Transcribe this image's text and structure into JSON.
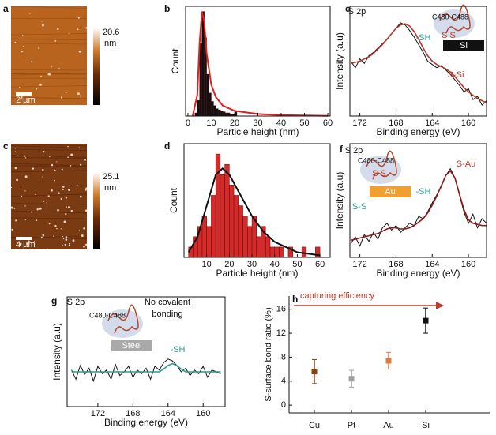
{
  "chart_data": [
    {
      "type": "image",
      "label": "a",
      "colorbar_max": "20.6",
      "colorbar_unit": "nm",
      "scale_label": "2 µm"
    },
    {
      "type": "histogram",
      "label": "b",
      "xlabel": "Particle height (nm)",
      "ylabel": "Count",
      "bins": [
        3,
        4,
        5,
        6,
        7,
        8,
        9,
        10,
        11,
        12,
        13,
        14,
        15,
        16,
        17,
        18,
        19,
        20,
        21
      ],
      "values": [
        3,
        15,
        70,
        100,
        75,
        40,
        22,
        14,
        10,
        7,
        6,
        5,
        4,
        3,
        3,
        2,
        2,
        4
      ],
      "color": "#111111",
      "fit": {
        "x": [
          2,
          4,
          5,
          6,
          7,
          8,
          10,
          12,
          15,
          20,
          30,
          40,
          50,
          60
        ],
        "values": [
          0,
          20,
          70,
          100,
          90,
          60,
          30,
          18,
          10,
          5,
          2,
          1,
          0.5,
          0.2
        ],
        "color": "#e02020"
      },
      "xlim": [
        -1,
        61
      ],
      "xticks": [
        0,
        10,
        20,
        30,
        40,
        50,
        60
      ],
      "ylim": [
        0,
        105
      ]
    },
    {
      "type": "image",
      "label": "c",
      "colorbar_max": "25.1",
      "colorbar_unit": "nm",
      "scale_label": "4 µm"
    },
    {
      "type": "histogram",
      "label": "d",
      "xlabel": "Particle height (nm)",
      "ylabel": "Count",
      "bins": [
        2,
        4,
        6,
        8,
        10,
        12,
        14,
        16,
        18,
        20,
        22,
        24,
        26,
        28,
        30,
        32,
        34,
        36,
        38,
        40,
        42,
        44,
        46,
        48,
        50,
        52,
        54,
        56,
        58,
        60
      ],
      "values": [
        1,
        2,
        3,
        4,
        3,
        6,
        10,
        8,
        9,
        7,
        6,
        5,
        4,
        3,
        4,
        2,
        3,
        2,
        1,
        1,
        1,
        0,
        1,
        0,
        0,
        1,
        0,
        0,
        1
      ],
      "color": "#d42a2a",
      "fit": {
        "x": [
          2,
          6,
          10,
          14,
          17,
          20,
          25,
          30,
          35,
          40,
          50,
          60
        ],
        "values": [
          0.5,
          2,
          5,
          8,
          8.6,
          8,
          6,
          4,
          2.5,
          1.5,
          0.5,
          0.2
        ],
        "color": "#111111"
      },
      "xlim": [
        0,
        64.5
      ],
      "xticks": [
        10,
        20,
        30,
        40,
        50,
        60
      ],
      "ylim": [
        0,
        11
      ]
    },
    {
      "type": "xps",
      "label": "e",
      "xlabel": "Binding energy (eV)",
      "ylabel": "Intensity (a.u)",
      "annotations": [
        "S 2p",
        "-SH",
        "S-Si",
        "C480-C488",
        "S S",
        "Si"
      ],
      "x": [
        173,
        172.5,
        172,
        171.5,
        171,
        170.5,
        170,
        169.5,
        169,
        168.5,
        168,
        167.5,
        167,
        166.5,
        166,
        165.5,
        165,
        164.5,
        164,
        163.5,
        163,
        162.5,
        162,
        161.5,
        161,
        160.5,
        160,
        159.5,
        159,
        158.5,
        158
      ],
      "series": [
        {
          "color": "#111111",
          "values": [
            50,
            44,
            52,
            48,
            55,
            58,
            62,
            66,
            70,
            75,
            80,
            85,
            83,
            78,
            72,
            65,
            58,
            50,
            47,
            44,
            46,
            42,
            38,
            33,
            28,
            22,
            25,
            15,
            18,
            10,
            14
          ]
        },
        {
          "color": "#b03a2e",
          "values": [
            48,
            49,
            50,
            52,
            54,
            57,
            61,
            65,
            70,
            75,
            80,
            83,
            84,
            82,
            77,
            70,
            62,
            55,
            50,
            47,
            45,
            43,
            40,
            36,
            31,
            26,
            22,
            19,
            16,
            14,
            12
          ]
        }
      ],
      "xlim": [
        173.1,
        158
      ],
      "xticks": [
        172,
        168,
        164,
        160
      ],
      "ylim": [
        0,
        100
      ]
    },
    {
      "type": "xps",
      "label": "f",
      "xlabel": "Binding energy (eV)",
      "ylabel": "Intensity (a.u)",
      "annotations": [
        "S 2p",
        "C480-C488",
        "S S",
        "Au",
        "-SH",
        "S-S",
        "S-Au"
      ],
      "x": [
        173,
        172.5,
        172,
        171.5,
        171,
        170.5,
        170,
        169.5,
        169,
        168.5,
        168,
        167.5,
        167,
        166.5,
        166,
        165.5,
        165,
        164.5,
        164,
        163.5,
        163,
        162.5,
        162,
        161.5,
        161,
        160.5,
        160,
        159.5,
        159,
        158.5,
        158
      ],
      "series": [
        {
          "color": "#111111",
          "values": [
            12,
            18,
            10,
            20,
            14,
            22,
            16,
            26,
            30,
            24,
            28,
            22,
            26,
            30,
            28,
            36,
            34,
            40,
            48,
            55,
            62,
            72,
            78,
            70,
            55,
            40,
            30,
            38,
            26,
            34,
            30
          ]
        },
        {
          "color": "#8b1a1a",
          "values": [
            15,
            16,
            17,
            18,
            19,
            20,
            21,
            23,
            25,
            26,
            26,
            25,
            25,
            26,
            28,
            31,
            34,
            39,
            46,
            54,
            63,
            72,
            76,
            70,
            56,
            42,
            33,
            30,
            29,
            28,
            28
          ]
        }
      ],
      "xlim": [
        173.1,
        158
      ],
      "xticks": [
        172,
        168,
        164,
        160
      ],
      "ylim": [
        0,
        100
      ]
    },
    {
      "type": "xps",
      "label": "g",
      "xlabel": "Binding energy (eV)",
      "ylabel": "Intensity (a.u)",
      "annotations": [
        "S 2p",
        "C480-C488",
        "No covalent",
        "bonding",
        "Steel",
        "-SH"
      ],
      "x": [
        175,
        174.5,
        174,
        173.5,
        173,
        172.5,
        172,
        171.5,
        171,
        170.5,
        170,
        169.5,
        169,
        168.5,
        168,
        167.5,
        167,
        166.5,
        166,
        165.5,
        165,
        164.5,
        164,
        163.5,
        163,
        162.5,
        162,
        161.5,
        161,
        160.5,
        160,
        159.5,
        159,
        158.5,
        158
      ],
      "series": [
        {
          "color": "#111111",
          "values": [
            40,
            30,
            45,
            35,
            42,
            28,
            44,
            36,
            40,
            30,
            46,
            34,
            38,
            44,
            32,
            40,
            36,
            42,
            30,
            44,
            40,
            48,
            52,
            50,
            45,
            38,
            42,
            34,
            40,
            36,
            44,
            32,
            40,
            38,
            36
          ]
        },
        {
          "color": "#2a9d8f",
          "values": [
            38,
            38,
            38,
            38,
            38,
            38,
            38,
            38,
            38,
            38,
            38,
            38,
            38,
            38,
            38,
            38,
            38,
            38,
            38,
            38,
            38,
            41,
            45,
            47,
            45,
            41,
            38,
            38,
            38,
            38,
            38,
            38,
            38,
            38,
            38
          ]
        }
      ],
      "xlim": [
        175.5,
        157.5
      ],
      "xticks": [
        172,
        168,
        164,
        160
      ],
      "ylim": [
        0,
        120
      ]
    },
    {
      "type": "errorpoint",
      "label": "h",
      "ylabel": "S-surface bond ratio (%)",
      "annotation": "capturing efficiency",
      "categories": [
        "Cu",
        "Pt",
        "Au",
        "Si"
      ],
      "values": [
        5.6,
        4.4,
        7.4,
        14.1
      ],
      "errors": [
        2.0,
        1.4,
        1.4,
        2.1
      ],
      "colors": [
        "#8b4513",
        "#a0a0a0",
        "#e07840",
        "#111111"
      ],
      "ylim": [
        -1.3,
        18.2
      ],
      "yticks": [
        0,
        4,
        8,
        12,
        16
      ]
    }
  ]
}
